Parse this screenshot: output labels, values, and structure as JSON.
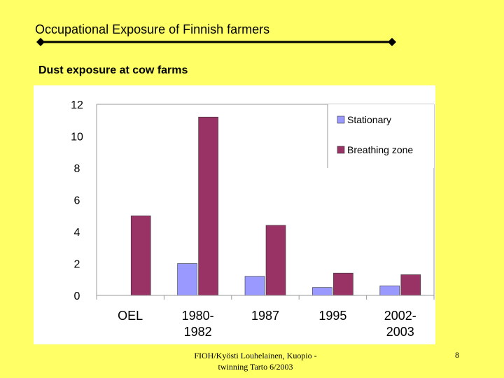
{
  "slide": {
    "title": "Occupational Exposure of Finnish farmers",
    "subtitle": "Dust exposure at cow farms",
    "footer_line1": "FIOH/Kyösti Louhelainen, Kuopio -",
    "footer_line2": "twinning Tarto 6/2003",
    "page_number": "8"
  },
  "chart_data": {
    "type": "bar",
    "categories": [
      [
        "OEL"
      ],
      [
        "1980-",
        "1982"
      ],
      [
        "1987"
      ],
      [
        "1995"
      ],
      [
        "2002-",
        "2003"
      ]
    ],
    "series": [
      {
        "name": "Stationary",
        "color": "#9999FF",
        "values": [
          null,
          2.0,
          1.2,
          0.5,
          0.6
        ]
      },
      {
        "name": "Breathing zone",
        "color": "#993366",
        "values": [
          5.0,
          11.2,
          4.4,
          1.4,
          1.3
        ]
      }
    ],
    "ylim": [
      0,
      12
    ],
    "yticks": [
      0,
      2,
      4,
      6,
      8,
      10,
      12
    ],
    "grid": false,
    "legend_position": "top-right"
  }
}
